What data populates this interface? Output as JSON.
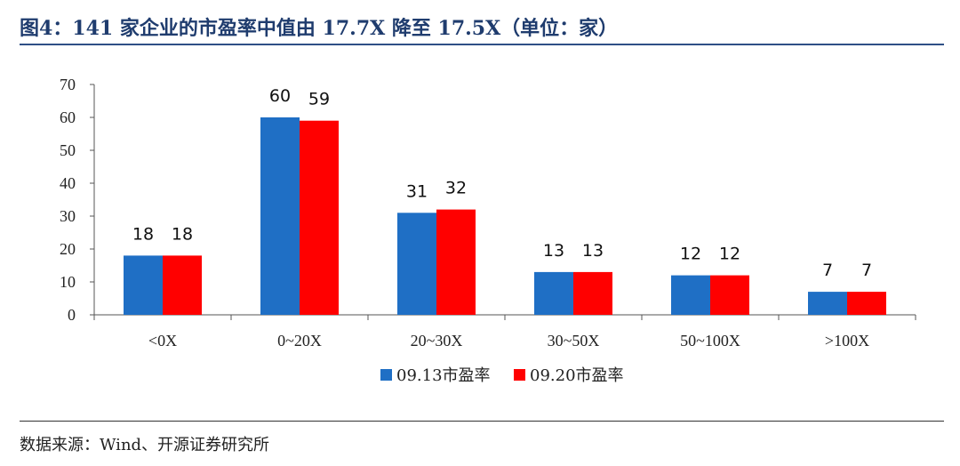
{
  "title": "图4：141 家企业的市盈率中值由 17.7X 降至 17.5X（单位：家）",
  "source": "数据来源：Wind、开源证券研究所",
  "chart_data": {
    "type": "bar",
    "title": "图4：141 家企业的市盈率中值由 17.7X 降至 17.5X（单位：家）",
    "unit": "家",
    "categories": [
      "<0X",
      "0~20X",
      "20~30X",
      "30~50X",
      "50~100X",
      ">100X"
    ],
    "series": [
      {
        "name": "09.13市盈率",
        "values": [
          18,
          60,
          31,
          13,
          12,
          7
        ],
        "color": "#1f6fc5"
      },
      {
        "name": "09.20市盈率",
        "values": [
          18,
          59,
          32,
          13,
          12,
          7
        ],
        "color": "#ff0000"
      }
    ],
    "ylim": [
      0,
      70
    ],
    "yticks": [
      0,
      10,
      20,
      30,
      40,
      50,
      60,
      70
    ],
    "xlabel": "",
    "ylabel": "",
    "grid": false,
    "legend_position": "bottom",
    "data_labels": true
  }
}
